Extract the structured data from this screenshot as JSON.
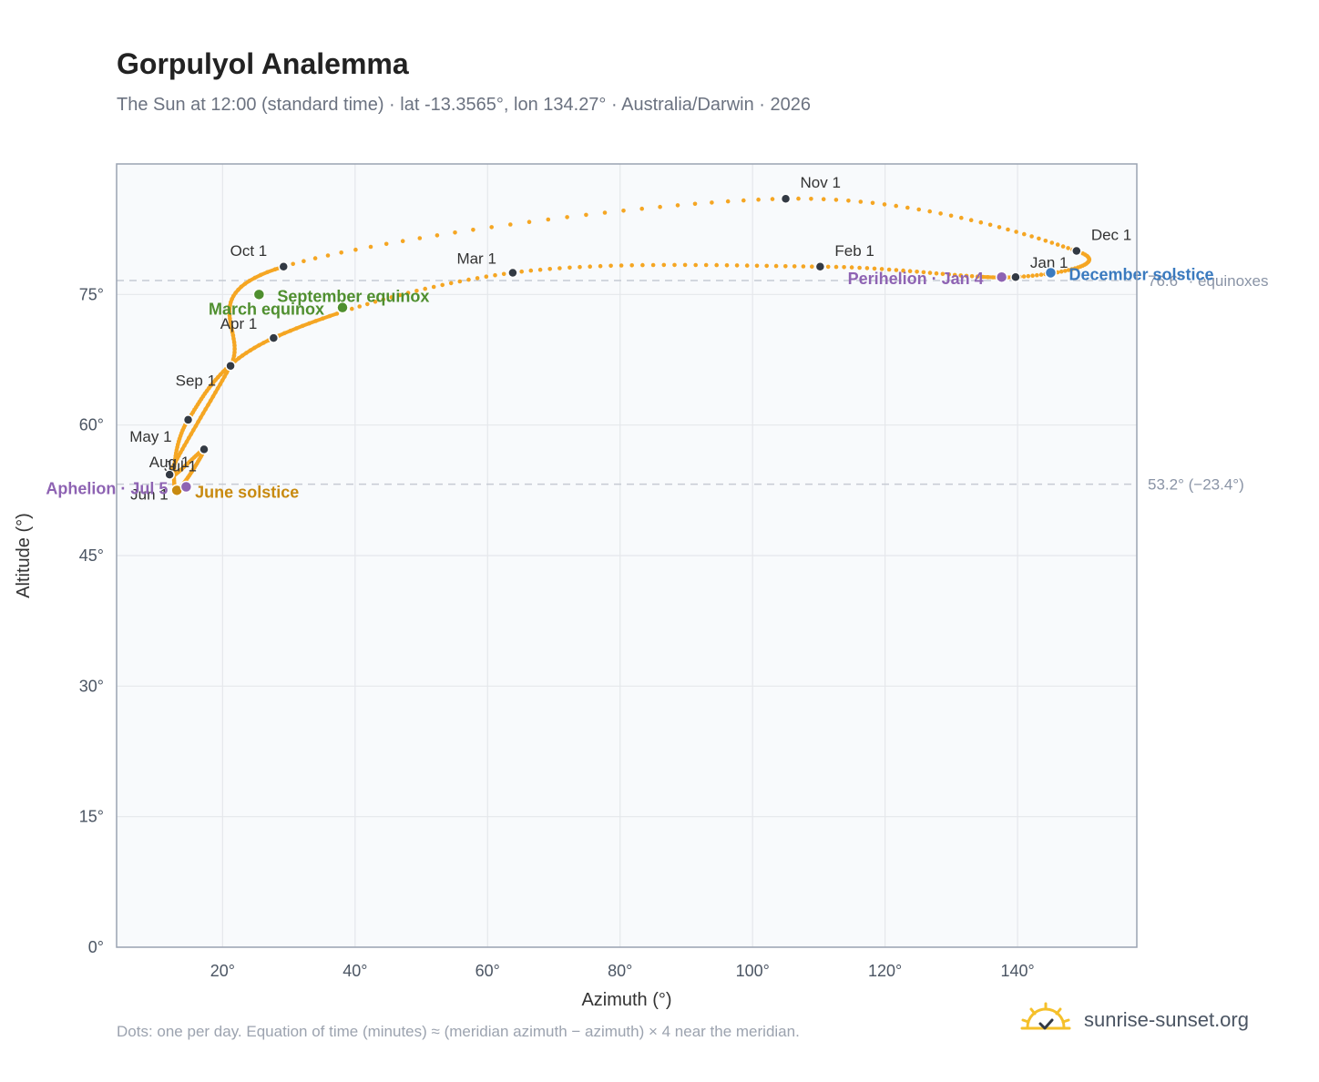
{
  "header": {
    "title": "Gorpulyol Analemma",
    "subtitle": "The Sun at 12:00 (standard time) · lat -13.3565°, lon 134.27° · Australia/Darwin · 2026"
  },
  "footer": {
    "note": "Dots: one per day. Equation of time (minutes) ≈ (meridian azimuth − azimuth) × 4 near the meridian.",
    "brand": "sunrise-sunset.org",
    "brand_icon": "sun-check-icon"
  },
  "colors": {
    "curve": "#f5a623",
    "month_dot": "#333a44",
    "equinox": "#4f8f2f",
    "june_solstice": "#c88a10",
    "december_solstice": "#3a7abf",
    "apsis": "#8e63b3",
    "plot_bg": "#f8fafc",
    "grid": "#e5e7eb",
    "reference_line": "#c6cbd3"
  },
  "chart_data": {
    "type": "scatter",
    "title": "Gorpulyol Analemma",
    "xlabel": "Azimuth (°)",
    "ylabel": "Altitude (°)",
    "xlim": [
      4,
      158
    ],
    "ylim": [
      0,
      90
    ],
    "x_ticks": [
      20,
      40,
      60,
      80,
      100,
      120,
      140
    ],
    "x_tick_labels": [
      "20°",
      "40°",
      "60°",
      "80°",
      "100°",
      "120°",
      "140°"
    ],
    "y_ticks": [
      0,
      15,
      30,
      45,
      60,
      75
    ],
    "y_tick_labels": [
      "0°",
      "15°",
      "30°",
      "45°",
      "60°",
      "75°"
    ],
    "grid": true,
    "reference_lines": [
      {
        "altitude": 76.6,
        "label": "76.6° · equinoxes"
      },
      {
        "altitude": 53.2,
        "label": "53.2° (−23.4°)"
      }
    ],
    "months": [
      {
        "label": "Jan 1",
        "az": 139.7,
        "alt": 77.0
      },
      {
        "label": "Feb 1",
        "az": 110.2,
        "alt": 78.2
      },
      {
        "label": "Mar 1",
        "az": 63.8,
        "alt": 77.5
      },
      {
        "label": "Apr 1",
        "az": 27.7,
        "alt": 70.0
      },
      {
        "label": "May 1",
        "az": 14.8,
        "alt": 60.6
      },
      {
        "label": "Jun 1",
        "az": 12.9,
        "alt": 52.5
      },
      {
        "label": "Jul 1",
        "az": 17.2,
        "alt": 57.2
      },
      {
        "label": "Aug 1",
        "az": 12.0,
        "alt": 54.3
      },
      {
        "label": "Sep 1",
        "az": 21.2,
        "alt": 66.8
      },
      {
        "label": "Oct 1",
        "az": 29.2,
        "alt": 78.2
      },
      {
        "label": "Nov 1",
        "az": 105.0,
        "alt": 86.0
      },
      {
        "label": "Dec 1",
        "az": 148.9,
        "alt": 80.0
      }
    ],
    "events": [
      {
        "label": "March equinox",
        "az": 38.1,
        "alt": 73.5,
        "kind": "equinox"
      },
      {
        "label": "September equinox",
        "az": 25.5,
        "alt": 75.0,
        "kind": "equinox"
      },
      {
        "label": "June solstice",
        "az": 13.1,
        "alt": 52.5,
        "kind": "june_solstice"
      },
      {
        "label": "December solstice",
        "az": 145.0,
        "alt": 77.5,
        "kind": "december_solstice"
      },
      {
        "label": "Aphelion · Jul 5",
        "az": 14.5,
        "alt": 52.9,
        "kind": "apsis"
      },
      {
        "label": "Perihelion · Jan 4",
        "az": 137.6,
        "alt": 77.0,
        "kind": "apsis"
      }
    ],
    "legend": "none"
  }
}
